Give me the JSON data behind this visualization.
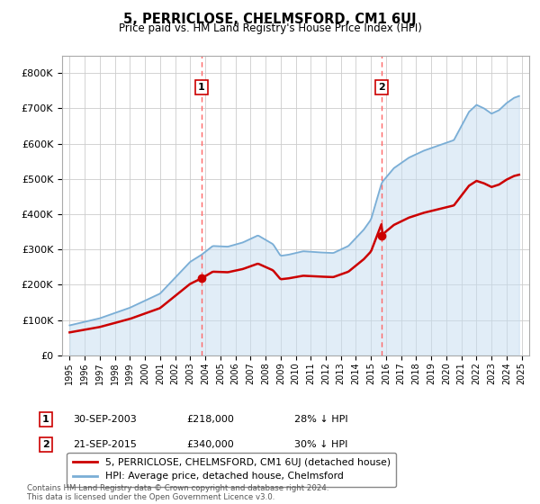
{
  "title": "5, PERRICLOSE, CHELMSFORD, CM1 6UJ",
  "subtitle": "Price paid vs. HM Land Registry's House Price Index (HPI)",
  "legend_line1": "5, PERRICLOSE, CHELMSFORD, CM1 6UJ (detached house)",
  "legend_line2": "HPI: Average price, detached house, Chelmsford",
  "annotation1_label": "1",
  "annotation1_date": "30-SEP-2003",
  "annotation1_price": "£218,000",
  "annotation1_hpi": "28% ↓ HPI",
  "annotation2_label": "2",
  "annotation2_date": "21-SEP-2015",
  "annotation2_price": "£340,000",
  "annotation2_hpi": "30% ↓ HPI",
  "sale1_x": 2003.75,
  "sale1_y": 218000,
  "sale2_x": 2015.72,
  "sale2_y": 340000,
  "price_line_color": "#cc0000",
  "hpi_line_color": "#7aaed6",
  "hpi_fill_color": "#c5ddf0",
  "vline_color": "#ff6666",
  "background_color": "#ffffff",
  "grid_color": "#cccccc",
  "ylim": [
    0,
    850000
  ],
  "yticks": [
    0,
    100000,
    200000,
    300000,
    400000,
    500000,
    600000,
    700000,
    800000
  ],
  "ytick_labels": [
    "£0",
    "£100K",
    "£200K",
    "£300K",
    "£400K",
    "£500K",
    "£600K",
    "£700K",
    "£800K"
  ],
  "xlim_start": 1994.5,
  "xlim_end": 2025.5,
  "footer": "Contains HM Land Registry data © Crown copyright and database right 2024.\nThis data is licensed under the Open Government Licence v3.0."
}
